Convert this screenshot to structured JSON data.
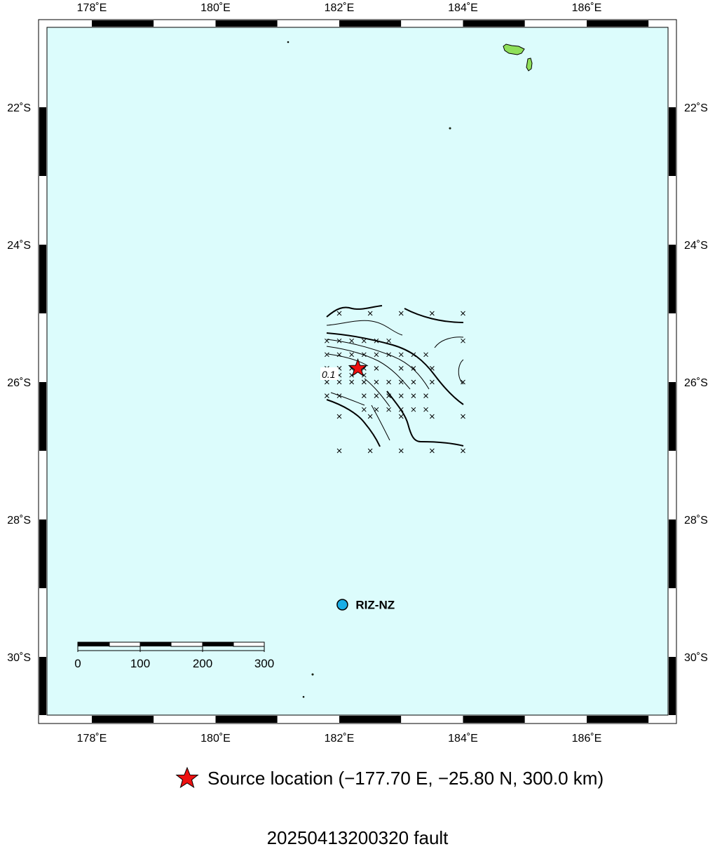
{
  "map": {
    "lon_range": [
      177.25,
      187.25
    ],
    "lat_range": [
      -30.9,
      -21.0
    ],
    "ocean_color": "#dcfcfc",
    "land_color": "#8fe05a",
    "x_ticks": [
      {
        "lon": 178,
        "label": "178˚E"
      },
      {
        "lon": 180,
        "label": "180˚E"
      },
      {
        "lon": 182,
        "label": "182˚E"
      },
      {
        "lon": 184,
        "label": "184˚E"
      },
      {
        "lon": 186,
        "label": "186˚E"
      }
    ],
    "y_ticks": [
      {
        "lat": -22,
        "label": "22˚S"
      },
      {
        "lat": -24,
        "label": "24˚S"
      },
      {
        "lat": -26,
        "label": "26˚S"
      },
      {
        "lat": -28,
        "label": "28˚S"
      },
      {
        "lat": -30,
        "label": "30˚S"
      }
    ]
  },
  "source": {
    "lon": 182.3,
    "lat": -25.8,
    "color": "#ee1111"
  },
  "station": {
    "name": "RIZ-NZ",
    "lon": 182.05,
    "lat": -29.24,
    "color": "#19aee6"
  },
  "contour_label": "0.1",
  "scale_bar": {
    "ticks": [
      "0",
      "100",
      "200",
      "300"
    ]
  },
  "grid_points": [
    [
      182,
      -25.0
    ],
    [
      182.5,
      -25.0
    ],
    [
      183,
      -25.0
    ],
    [
      183.5,
      -25.0
    ],
    [
      184,
      -25.0
    ],
    [
      181.8,
      -25.4
    ],
    [
      182,
      -25.4
    ],
    [
      182.2,
      -25.4
    ],
    [
      182.4,
      -25.4
    ],
    [
      182.6,
      -25.4
    ],
    [
      182.8,
      -25.4
    ],
    [
      184,
      -25.4
    ],
    [
      181.8,
      -25.6
    ],
    [
      182,
      -25.6
    ],
    [
      182.2,
      -25.6
    ],
    [
      182.4,
      -25.6
    ],
    [
      182.6,
      -25.6
    ],
    [
      182.8,
      -25.6
    ],
    [
      183,
      -25.6
    ],
    [
      183.2,
      -25.6
    ],
    [
      183.4,
      -25.6
    ],
    [
      181.8,
      -25.8
    ],
    [
      182,
      -25.8
    ],
    [
      182.2,
      -25.8
    ],
    [
      182.4,
      -25.8
    ],
    [
      182.6,
      -25.8
    ],
    [
      183,
      -25.8
    ],
    [
      183.2,
      -25.8
    ],
    [
      183.5,
      -25.8
    ],
    [
      182,
      -25.9
    ],
    [
      182.2,
      -25.9
    ],
    [
      182.4,
      -25.9
    ],
    [
      181.8,
      -26.0
    ],
    [
      182,
      -26.0
    ],
    [
      182.2,
      -26.0
    ],
    [
      182.4,
      -26.0
    ],
    [
      182.6,
      -26.0
    ],
    [
      182.8,
      -26.0
    ],
    [
      183,
      -26.0
    ],
    [
      183.2,
      -26.0
    ],
    [
      183.5,
      -26.0
    ],
    [
      184,
      -26.0
    ],
    [
      181.8,
      -26.2
    ],
    [
      182,
      -26.2
    ],
    [
      182.4,
      -26.2
    ],
    [
      182.6,
      -26.2
    ],
    [
      182.8,
      -26.2
    ],
    [
      183,
      -26.2
    ],
    [
      183.2,
      -26.2
    ],
    [
      183.4,
      -26.2
    ],
    [
      182.4,
      -26.4
    ],
    [
      182.6,
      -26.4
    ],
    [
      182.8,
      -26.4
    ],
    [
      183,
      -26.4
    ],
    [
      183.2,
      -26.4
    ],
    [
      183.4,
      -26.4
    ],
    [
      182,
      -26.5
    ],
    [
      182.5,
      -26.5
    ],
    [
      183,
      -26.5
    ],
    [
      183.5,
      -26.5
    ],
    [
      184,
      -26.5
    ],
    [
      182,
      -27.0
    ],
    [
      182.5,
      -27.0
    ],
    [
      183,
      -27.0
    ],
    [
      183.5,
      -27.0
    ],
    [
      184,
      -27.0
    ]
  ],
  "legend": {
    "source_text": "Source location (−177.70 E, −25.80 N, 300.0 km)"
  },
  "footer": {
    "title": "20250413200320 fault"
  }
}
